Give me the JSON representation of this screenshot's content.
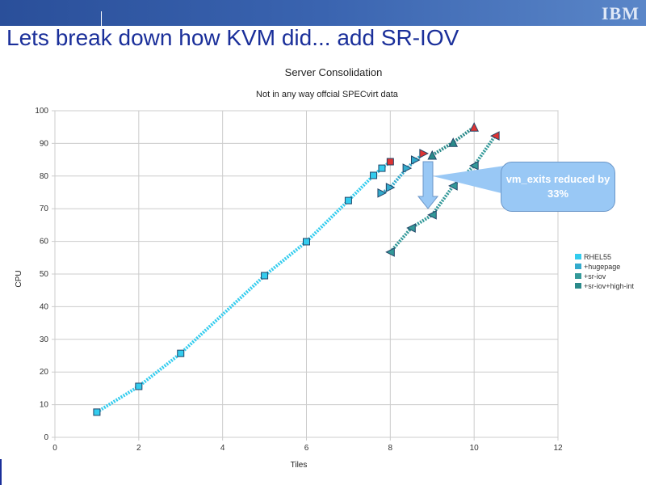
{
  "slide": {
    "title": "Lets break down how KVM did...   add SR-IOV",
    "logo": "IBM"
  },
  "callout": {
    "text": "vm_exits reduced by 33%"
  },
  "chart_data": {
    "type": "line",
    "title": "Server Consolidation",
    "subtitle": "Not in any way offcial SPECvirt data",
    "xlabel": "Tiles",
    "ylabel": "CPU",
    "xlim": [
      0,
      12
    ],
    "ylim": [
      0,
      100
    ],
    "xticks": [
      0,
      2,
      4,
      6,
      8,
      10,
      12
    ],
    "yticks": [
      0,
      10,
      20,
      30,
      40,
      50,
      60,
      70,
      80,
      90,
      100
    ],
    "grid": true,
    "legend_position": "right",
    "series": [
      {
        "name": "RHEL55",
        "marker": "square",
        "color": "#33ccee",
        "x": [
          1,
          2,
          3,
          5,
          6,
          7,
          7.6,
          7.8,
          8.0
        ],
        "y": [
          7.7,
          15.6,
          25.7,
          49.5,
          59.9,
          72.5,
          80.2,
          82.4,
          84.4
        ]
      },
      {
        "name": "+hugepage",
        "marker": "triangle-right",
        "color": "#33aacc",
        "x": [
          7.8,
          8.0,
          8.4,
          8.6,
          8.8
        ],
        "y": [
          74.8,
          76.5,
          82.4,
          84.9,
          86.9
        ]
      },
      {
        "name": "+sr-iov",
        "marker": "triangle-left",
        "color": "#339999",
        "x": [
          8.0,
          8.5,
          9.0,
          9.5,
          10.0,
          10.5
        ],
        "y": [
          56.7,
          64.1,
          68.1,
          77.0,
          83.2,
          92.3
        ]
      },
      {
        "name": "+sr-iov+high-int",
        "marker": "triangle-up",
        "color": "#2a8a8a",
        "x": [
          9.0,
          9.5,
          10.0
        ],
        "y": [
          86.4,
          90.3,
          95.0
        ]
      }
    ],
    "last_point_color": "#dd3333"
  }
}
